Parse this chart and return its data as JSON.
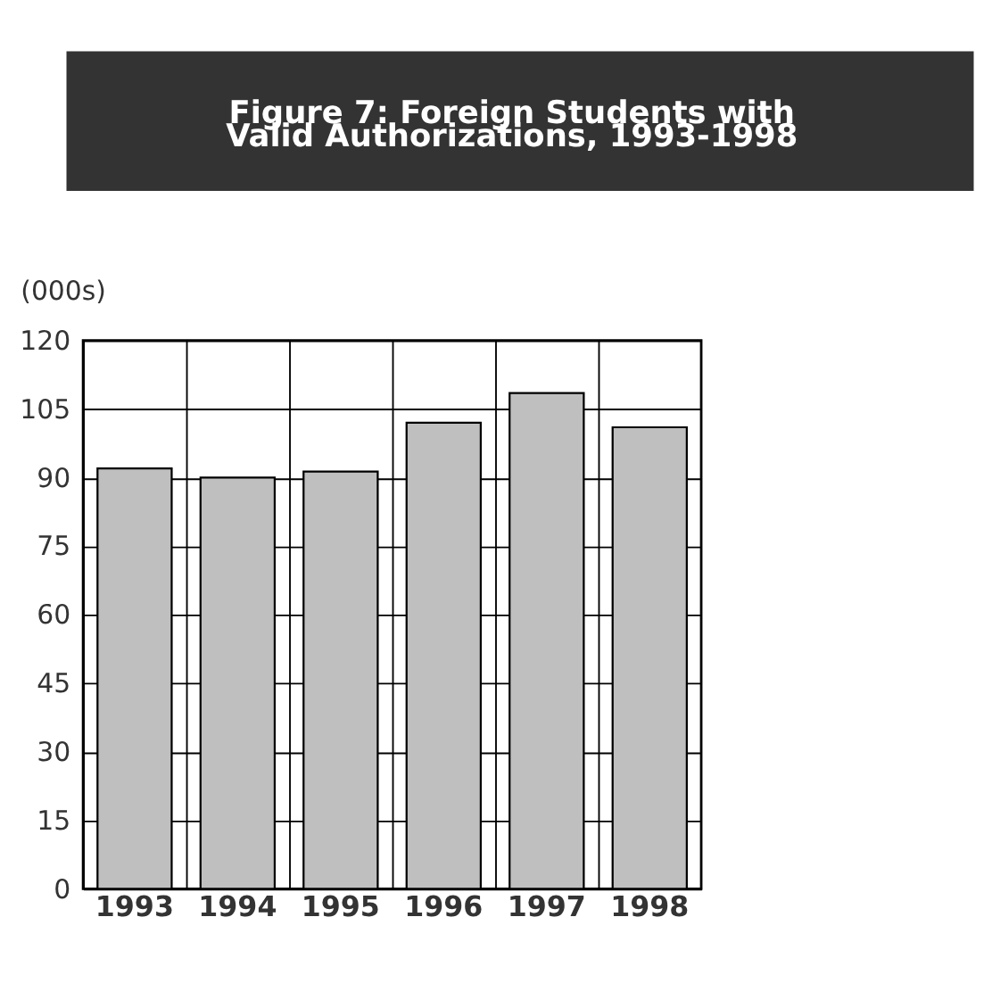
{
  "chart_data": {
    "type": "bar",
    "title": "Figure 7: Foreign Students with Valid Authorizations, 1993-1998",
    "ylabel": "(000s)",
    "categories": [
      "1993",
      "1994",
      "1995",
      "1996",
      "1997",
      "1998"
    ],
    "values": [
      92,
      90,
      91.3,
      102,
      108.5,
      101
    ],
    "color": "#bfbfbf",
    "ylim": [
      0,
      120
    ],
    "yticks": [
      0,
      15,
      30,
      45,
      60,
      75,
      90,
      105,
      120
    ],
    "grid": true
  }
}
